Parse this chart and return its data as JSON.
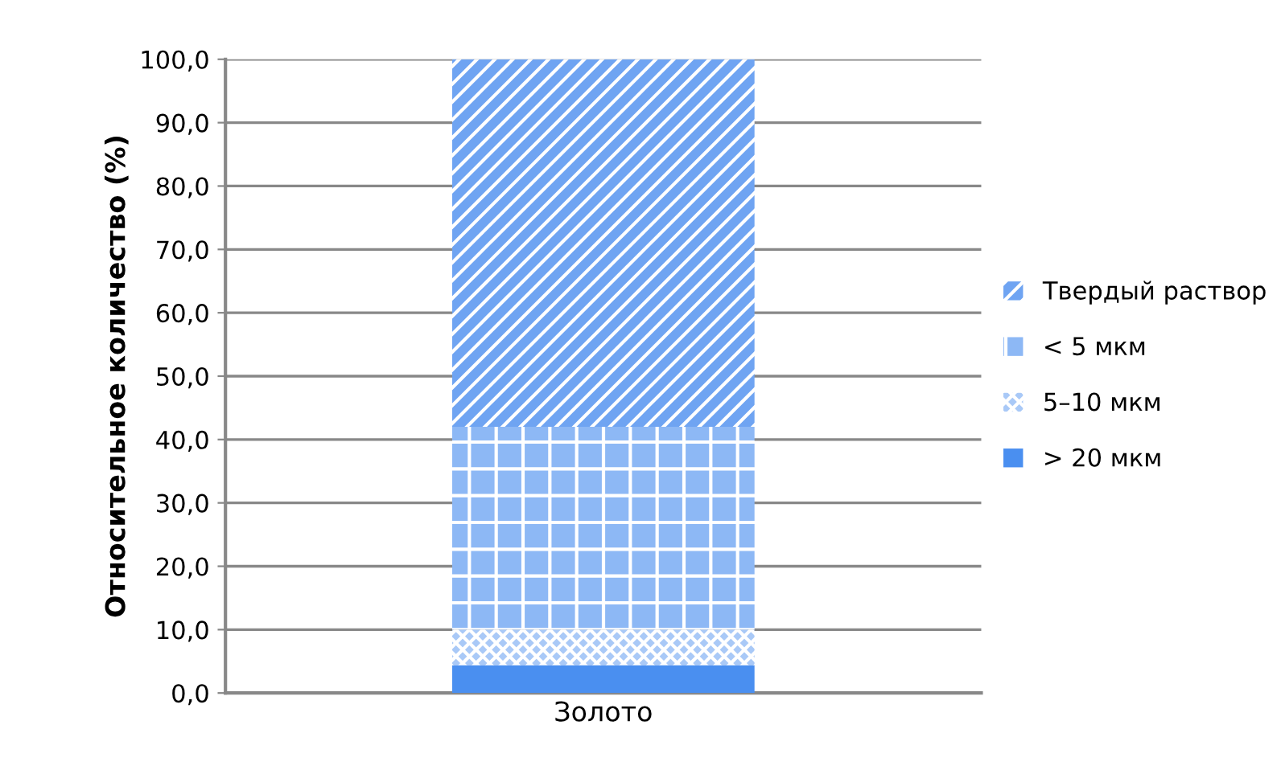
{
  "chart_data": {
    "type": "bar",
    "stacked": true,
    "ylabel": "Относительное количество (%)",
    "categories": [
      "Золото"
    ],
    "series": [
      {
        "name": "> 20 мкм",
        "color": "#4a8ff0",
        "values": [
          4.4
        ]
      },
      {
        "name": "5–10 мкм",
        "color": "#a9c9f7",
        "values": [
          5.6
        ]
      },
      {
        "name": "< 5 мкм",
        "color": "#8db8f5",
        "values": [
          32.0
        ]
      },
      {
        "name": "Твердый раствор",
        "color": "#6fa4f2",
        "values": [
          58.0
        ]
      }
    ],
    "ylim": [
      0,
      100
    ],
    "yticks": [
      {
        "value": 0,
        "label": "0,0"
      },
      {
        "value": 10,
        "label": "10,0"
      },
      {
        "value": 20,
        "label": "20,0"
      },
      {
        "value": 30,
        "label": "30,0"
      },
      {
        "value": 40,
        "label": "40,0"
      },
      {
        "value": 50,
        "label": "50,0"
      },
      {
        "value": 60,
        "label": "60,0"
      },
      {
        "value": 70,
        "label": "70,0"
      },
      {
        "value": 80,
        "label": "80,0"
      },
      {
        "value": 90,
        "label": "90,0"
      },
      {
        "value": 100,
        "label": "100,0"
      }
    ],
    "grid": "y",
    "legend": "right"
  }
}
